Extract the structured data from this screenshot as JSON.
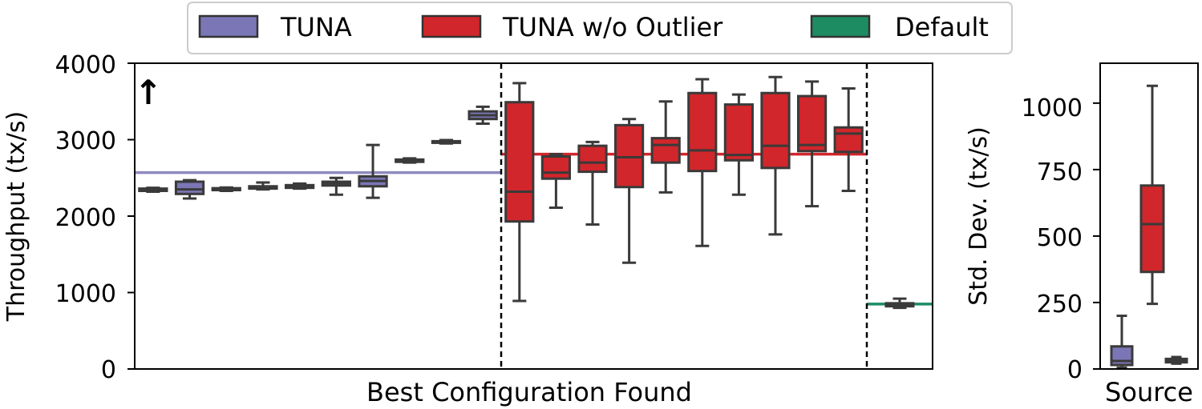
{
  "legend": {
    "items": [
      {
        "label": "TUNA",
        "color": "#7b76b5"
      },
      {
        "label": "TUNA w/o Outlier",
        "color": "#d1262b"
      },
      {
        "label": "Default",
        "color": "#1d8c63"
      }
    ]
  },
  "chart_data": [
    {
      "type": "box",
      "xlabel": "Best Configuration Found",
      "ylabel": "Throughput (tx/s)",
      "ylim": [
        0,
        4000
      ],
      "yticks": [
        "0",
        "1000",
        "2000",
        "3000",
        "4000"
      ],
      "grid": false,
      "annotation": "↑",
      "groups": [
        {
          "name": "TUNA",
          "color": "#7b76b5",
          "reference_line": 2570,
          "boxes": [
            {
              "whislo": 2320,
              "q1": 2330,
              "med": 2345,
              "q3": 2360,
              "whishi": 2370
            },
            {
              "whislo": 2230,
              "q1": 2290,
              "med": 2350,
              "q3": 2450,
              "whishi": 2470
            },
            {
              "whislo": 2330,
              "q1": 2340,
              "med": 2350,
              "q3": 2365,
              "whishi": 2375
            },
            {
              "whislo": 2350,
              "q1": 2360,
              "med": 2375,
              "q3": 2390,
              "whishi": 2440
            },
            {
              "whislo": 2360,
              "q1": 2370,
              "med": 2385,
              "q3": 2405,
              "whishi": 2425
            },
            {
              "whislo": 2280,
              "q1": 2400,
              "med": 2430,
              "q3": 2450,
              "whishi": 2500
            },
            {
              "whislo": 2240,
              "q1": 2390,
              "med": 2460,
              "q3": 2520,
              "whishi": 2930
            },
            {
              "whislo": 2700,
              "q1": 2710,
              "med": 2725,
              "q3": 2740,
              "whishi": 2755
            },
            {
              "whislo": 2950,
              "q1": 2960,
              "med": 2970,
              "q3": 2980,
              "whishi": 2995
            },
            {
              "whislo": 3210,
              "q1": 3270,
              "med": 3320,
              "q3": 3370,
              "whishi": 3430
            }
          ]
        },
        {
          "name": "TUNA w/o Outlier",
          "color": "#d1262b",
          "reference_line": 2810,
          "boxes": [
            {
              "whislo": 890,
              "q1": 1930,
              "med": 2320,
              "q3": 3490,
              "whishi": 3740
            },
            {
              "whislo": 2110,
              "q1": 2490,
              "med": 2570,
              "q3": 2780,
              "whishi": 2810
            },
            {
              "whislo": 1890,
              "q1": 2580,
              "med": 2700,
              "q3": 2920,
              "whishi": 2970
            },
            {
              "whislo": 1390,
              "q1": 2380,
              "med": 2770,
              "q3": 3190,
              "whishi": 3270
            },
            {
              "whislo": 2310,
              "q1": 2700,
              "med": 2930,
              "q3": 3020,
              "whishi": 3500
            },
            {
              "whislo": 1610,
              "q1": 2590,
              "med": 2860,
              "q3": 3610,
              "whishi": 3790
            },
            {
              "whislo": 2280,
              "q1": 2730,
              "med": 2800,
              "q3": 3460,
              "whishi": 3590
            },
            {
              "whislo": 1760,
              "q1": 2630,
              "med": 2920,
              "q3": 3610,
              "whishi": 3820
            },
            {
              "whislo": 2130,
              "q1": 2850,
              "med": 2930,
              "q3": 3570,
              "whishi": 3760
            },
            {
              "whislo": 2330,
              "q1": 2840,
              "med": 3080,
              "q3": 3160,
              "whishi": 3670
            }
          ]
        },
        {
          "name": "Default",
          "color": "#1d8c63",
          "reference_line": 850,
          "boxes": [
            {
              "whislo": 800,
              "q1": 820,
              "med": 840,
              "q3": 860,
              "whishi": 920
            }
          ]
        }
      ]
    },
    {
      "type": "box",
      "xlabel": "Source",
      "ylabel": "Std. Dev. (tx/s)",
      "ylim": [
        0,
        1150
      ],
      "yticks": [
        "0",
        "250",
        "500",
        "750",
        "1000"
      ],
      "grid": false,
      "boxes": [
        {
          "source": "TUNA",
          "color": "#7b76b5",
          "whislo": 5,
          "q1": 15,
          "med": 30,
          "q3": 85,
          "whishi": 200
        },
        {
          "source": "TUNA w/o Outlier",
          "color": "#d1262b",
          "whislo": 245,
          "q1": 365,
          "med": 545,
          "q3": 690,
          "whishi": 1065
        },
        {
          "source": "Default",
          "color": "#1d8c63",
          "whislo": 20,
          "q1": 25,
          "med": 30,
          "q3": 38,
          "whishi": 45
        }
      ]
    }
  ]
}
